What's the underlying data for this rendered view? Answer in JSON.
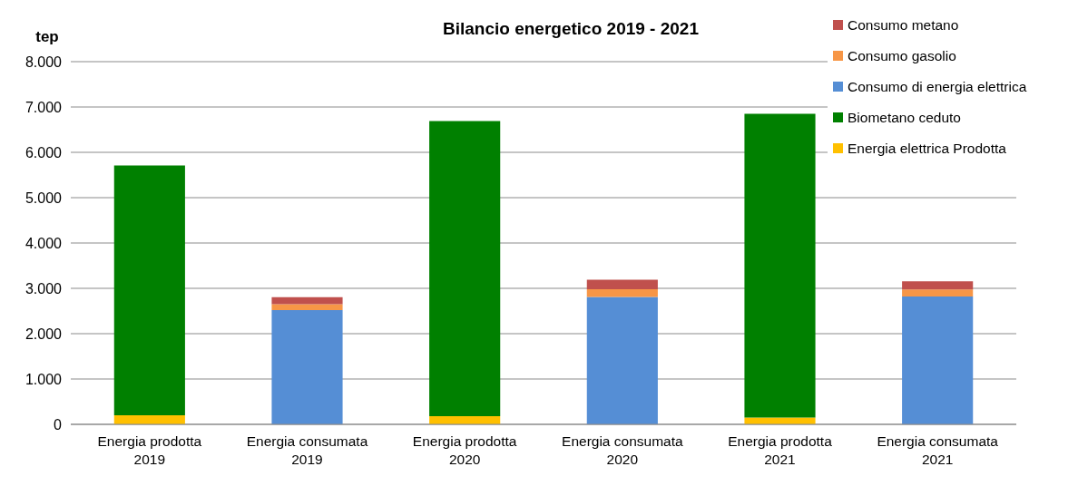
{
  "chart_data": {
    "type": "bar",
    "title": "Bilancio energetico 2019 - 2021",
    "ylabel": "tep",
    "stacked": true,
    "categories": [
      "Energia prodotta 2019",
      "Energia consumata 2019",
      "Energia prodotta 2020",
      "Energia consumata 2020",
      "Energia prodotta 2021",
      "Energia consumata 2021"
    ],
    "series": [
      {
        "name": "Energia elettrica Prodotta",
        "color": "#ffc000",
        "values": [
          200,
          0,
          180,
          0,
          150,
          0
        ]
      },
      {
        "name": "Biometano ceduto",
        "color": "#008000",
        "values": [
          5510,
          0,
          6510,
          0,
          6700,
          0
        ]
      },
      {
        "name": "Consumo di energia elettrica",
        "color": "#558ed5",
        "values": [
          0,
          2520,
          0,
          2810,
          0,
          2820
        ]
      },
      {
        "name": "Consumo gasolio",
        "color": "#f79646",
        "values": [
          0,
          130,
          0,
          170,
          0,
          155
        ]
      },
      {
        "name": "Consumo metano",
        "color": "#c0504d",
        "values": [
          0,
          155,
          0,
          210,
          0,
          180
        ]
      }
    ],
    "ylim": [
      0,
      8000
    ],
    "yticks": [
      {
        "value": 0,
        "label": "0"
      },
      {
        "value": 1000,
        "label": "1.000"
      },
      {
        "value": 2000,
        "label": "2.000"
      },
      {
        "value": 3000,
        "label": "3.000"
      },
      {
        "value": 4000,
        "label": "4.000"
      },
      {
        "value": 5000,
        "label": "5.000"
      },
      {
        "value": 6000,
        "label": "6.000"
      },
      {
        "value": 7000,
        "label": "7.000"
      },
      {
        "value": 8000,
        "label": "8.000"
      }
    ],
    "grid": "y",
    "legend": "right"
  }
}
